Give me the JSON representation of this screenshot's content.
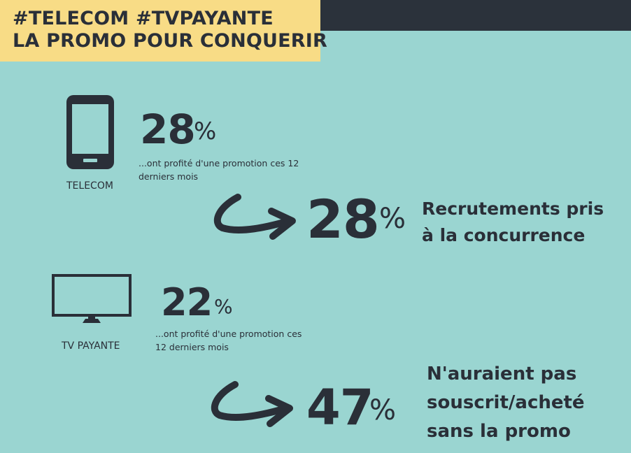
{
  "header": {
    "line1": "#TELECOM #TVPAYANTE",
    "line2": "LA PROMO POUR CONQUERIR"
  },
  "telecom": {
    "icon": "smartphone-icon",
    "label": "TELECOM",
    "value": "28",
    "percent_sign": "%",
    "description": "...ont profité d'une promotion ces 12 derniers mois",
    "result_value": "28",
    "result_percent_sign": "%",
    "result_text": "Recrutements pris à la concurrence"
  },
  "tv": {
    "icon": "television-icon",
    "label": "TV PAYANTE",
    "value": "22",
    "percent_sign": "%",
    "description": "...ont profité d'une promotion ces 12 derniers mois",
    "result_value": "47",
    "result_percent_sign": "%",
    "result_text": "N'auraient pas souscrit/acheté sans la promo"
  },
  "colors": {
    "background": "#9ad5d1",
    "header_bar": "#2b323b",
    "title_box": "#f8dc86",
    "text": "#2a2f38"
  }
}
